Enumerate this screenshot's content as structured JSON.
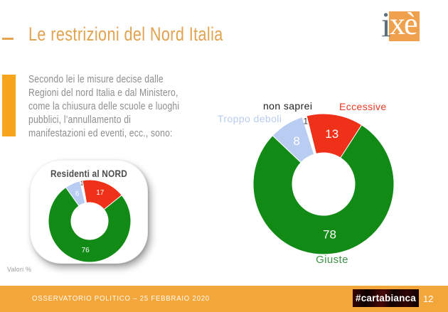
{
  "slide": {
    "title": "Le restrizioni del Nord Italia",
    "note": "Valori %"
  },
  "logo": {
    "part_i": "i",
    "part_xe": "xè"
  },
  "question": {
    "lines": [
      "Secondo lei le misure decise dalle",
      "Regioni del nord Italia e dal Ministero,",
      "come la chiusura delle scuole e luoghi",
      "pubblici, l’annullamento di",
      "manifestazioni ed eventi, ecc., sono:"
    ]
  },
  "footer": {
    "source": "OSSERVATORIO POLITICO – 25 FEBBRAIO 2020",
    "badge": "#cartabianca",
    "page": "12"
  },
  "colors": {
    "accent_orange": "#f8a51e",
    "title_orange": "#e2a250",
    "footer_orange": "#f3a73a",
    "green": "#118a16",
    "red": "#ee3118",
    "light_blue": "#b9cdf2",
    "label_dark": "#1f1f1f"
  },
  "chart_data": [
    {
      "type": "pie",
      "donut": true,
      "title": "",
      "start_angle": -14,
      "direction": "clockwise",
      "slices": [
        {
          "label": "Eccessive",
          "value": 13,
          "color": "#ee3118",
          "value_color": "#ffffff"
        },
        {
          "label": "Giuste",
          "value": 78,
          "color": "#118a16",
          "value_color": "#ffffff"
        },
        {
          "label": "Troppo deboli",
          "value": 8,
          "color": "#b9cdf2",
          "value_color": "#ffffff"
        },
        {
          "label": "non saprei",
          "value": 1,
          "color": "#ffffff",
          "value_color": "#333333",
          "label_radius_factor": 0.93,
          "label_size": 12
        }
      ]
    },
    {
      "type": "pie",
      "donut": true,
      "title": "Residenti al NORD",
      "start_angle": -10,
      "direction": "clockwise",
      "slices": [
        {
          "label": "Eccessive",
          "value": 17,
          "color": "#ee3118",
          "value_color": "#ffffff"
        },
        {
          "label": "Giuste",
          "value": 76,
          "color": "#118a16",
          "value_color": "#ffffff"
        },
        {
          "label": "Troppo deboli",
          "value": 6,
          "color": "#b9cdf2",
          "value_color": "#ffffff"
        },
        {
          "label": "non saprei",
          "value": 1,
          "color": "#ffffff",
          "value_color": "#333333",
          "label_radius_factor": 0.93,
          "label_size": 8
        }
      ]
    }
  ]
}
